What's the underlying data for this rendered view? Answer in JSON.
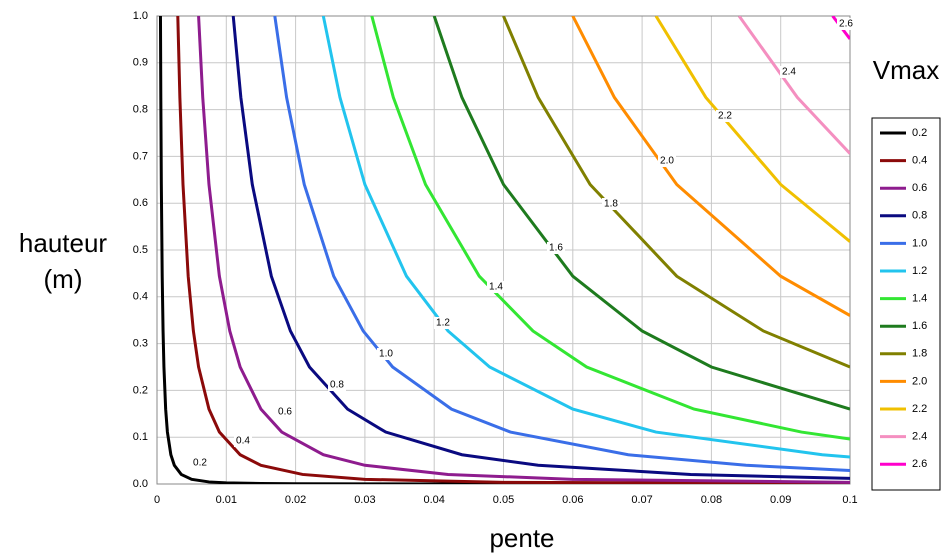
{
  "chart_data": {
    "type": "line",
    "xlabel": "pente",
    "ylabel": "hauteur (m)",
    "legend_title": "Vmax",
    "legend": "right",
    "grid": true,
    "xlim": [
      0,
      0.1
    ],
    "ylim": [
      0,
      1
    ],
    "xticks": [
      0,
      0.01,
      0.02,
      0.03,
      0.04,
      0.05,
      0.06,
      0.07,
      0.08,
      0.09,
      0.1
    ],
    "yticks": [
      {
        "value": 0,
        "label": "0.0"
      },
      0.1,
      0.2,
      0.3,
      0.4,
      0.5,
      0.6,
      0.7,
      0.8,
      0.9,
      {
        "value": 1,
        "label": "1.0"
      }
    ],
    "series": [
      {
        "name": "0.2",
        "color": "#000000",
        "x": [
          0.0005,
          0.00055,
          0.000625,
          0.00075,
          0.000875,
          0.001,
          0.00125,
          0.0015,
          0.002,
          0.0025,
          0.0035,
          0.005,
          0.0075,
          0.01,
          0.015,
          0.02,
          0.03,
          0.05,
          0.1
        ],
        "values": [
          1,
          0.826,
          0.64,
          0.444,
          0.327,
          0.25,
          0.16,
          0.111,
          0.0625,
          0.04,
          0.0204,
          0.01,
          0.0044,
          0.0025,
          0.0011,
          0.0006,
          0.0003,
          0.0001,
          3e-05
        ]
      },
      {
        "name": "0.4",
        "color": "#8b0a0a",
        "x": [
          0.003,
          0.0033,
          0.00375,
          0.0045,
          0.00525,
          0.006,
          0.0075,
          0.009,
          0.012,
          0.015,
          0.021,
          0.03,
          0.05,
          0.1
        ],
        "values": [
          1,
          0.826,
          0.64,
          0.444,
          0.327,
          0.25,
          0.16,
          0.111,
          0.0625,
          0.04,
          0.0204,
          0.01,
          0.0036,
          0.0009
        ]
      },
      {
        "name": "0.6",
        "color": "#8e1c8e",
        "x": [
          0.006,
          0.0066,
          0.0075,
          0.009,
          0.0105,
          0.012,
          0.015,
          0.018,
          0.024,
          0.03,
          0.042,
          0.06,
          0.1
        ],
        "values": [
          1,
          0.826,
          0.64,
          0.444,
          0.327,
          0.25,
          0.16,
          0.111,
          0.0625,
          0.04,
          0.0204,
          0.01,
          0.0036
        ]
      },
      {
        "name": "0.8",
        "color": "#0a0a80",
        "x": [
          0.011,
          0.0121,
          0.01375,
          0.0165,
          0.01925,
          0.022,
          0.0275,
          0.033,
          0.044,
          0.055,
          0.077,
          0.1
        ],
        "values": [
          1,
          0.826,
          0.64,
          0.444,
          0.327,
          0.25,
          0.16,
          0.111,
          0.0625,
          0.04,
          0.0204,
          0.0121
        ]
      },
      {
        "name": "1.0",
        "color": "#3a6ee8",
        "x": [
          0.017,
          0.0187,
          0.02125,
          0.0255,
          0.02975,
          0.034,
          0.0425,
          0.051,
          0.068,
          0.085,
          0.1
        ],
        "values": [
          1,
          0.826,
          0.64,
          0.444,
          0.327,
          0.25,
          0.16,
          0.111,
          0.0625,
          0.04,
          0.0289
        ]
      },
      {
        "name": "1.2",
        "color": "#22c4ee",
        "x": [
          0.024,
          0.0264,
          0.03,
          0.036,
          0.042,
          0.048,
          0.06,
          0.072,
          0.096,
          0.1
        ],
        "values": [
          1,
          0.826,
          0.64,
          0.444,
          0.327,
          0.25,
          0.16,
          0.111,
          0.0625,
          0.0576
        ]
      },
      {
        "name": "1.4",
        "color": "#33e633",
        "x": [
          0.031,
          0.0341,
          0.03875,
          0.0465,
          0.05425,
          0.062,
          0.0775,
          0.093,
          0.1
        ],
        "values": [
          1,
          0.826,
          0.64,
          0.444,
          0.327,
          0.25,
          0.16,
          0.111,
          0.0961
        ]
      },
      {
        "name": "1.6",
        "color": "#1e7b1e",
        "x": [
          0.04,
          0.044,
          0.05,
          0.06,
          0.07,
          0.08,
          0.1
        ],
        "values": [
          1,
          0.826,
          0.64,
          0.444,
          0.327,
          0.25,
          0.16
        ]
      },
      {
        "name": "1.8",
        "color": "#808000",
        "x": [
          0.05,
          0.055,
          0.0625,
          0.075,
          0.0875,
          0.1
        ],
        "values": [
          1,
          0.826,
          0.64,
          0.444,
          0.327,
          0.25
        ]
      },
      {
        "name": "2.0",
        "color": "#ff8c00",
        "x": [
          0.06,
          0.066,
          0.075,
          0.09,
          0.1
        ],
        "values": [
          1,
          0.826,
          0.64,
          0.444,
          0.36
        ]
      },
      {
        "name": "2.2",
        "color": "#f0c000",
        "x": [
          0.072,
          0.0792,
          0.09,
          0.1
        ],
        "values": [
          1,
          0.826,
          0.64,
          0.518
        ]
      },
      {
        "name": "2.4",
        "color": "#f48fc0",
        "x": [
          0.084,
          0.0924,
          0.1
        ],
        "values": [
          1,
          0.826,
          0.706
        ]
      },
      {
        "name": "2.6",
        "color": "#ff00cc",
        "x": [
          0.0975,
          0.1
        ],
        "values": [
          1,
          0.951
        ]
      }
    ]
  }
}
